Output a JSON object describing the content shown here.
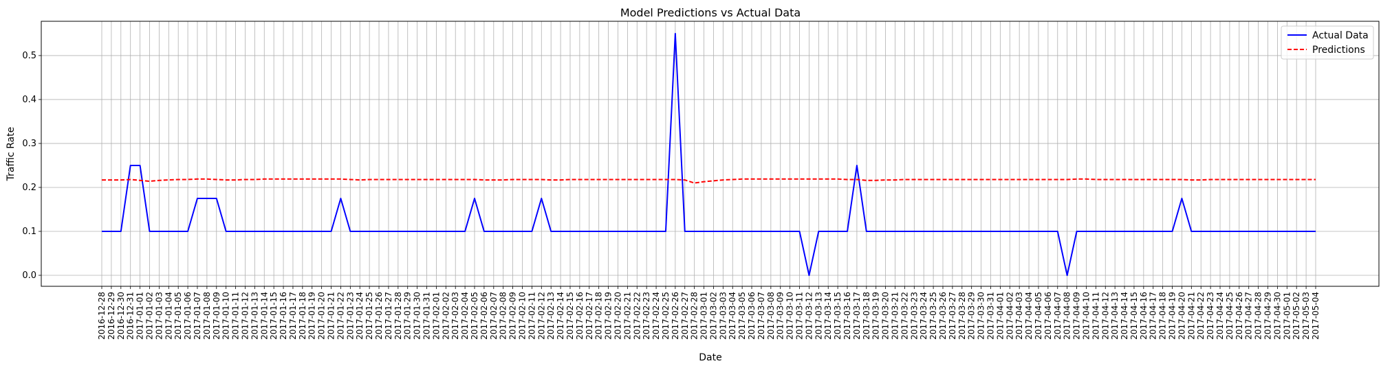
{
  "chart_data": {
    "type": "line",
    "title": "Model Predictions vs Actual Data",
    "xlabel": "Date",
    "ylabel": "Traffic Rate",
    "ylim": [
      -0.025,
      0.578
    ],
    "yticks": [
      "0.0",
      "0.1",
      "0.2",
      "0.3",
      "0.4",
      "0.5"
    ],
    "grid": true,
    "legend_position": "top-right",
    "x": [
      "2016-12-28",
      "2016-12-29",
      "2016-12-30",
      "2016-12-31",
      "2017-01-01",
      "2017-01-02",
      "2017-01-03",
      "2017-01-04",
      "2017-01-05",
      "2017-01-06",
      "2017-01-07",
      "2017-01-08",
      "2017-01-09",
      "2017-01-10",
      "2017-01-11",
      "2017-01-12",
      "2017-01-13",
      "2017-01-14",
      "2017-01-15",
      "2017-01-16",
      "2017-01-17",
      "2017-01-18",
      "2017-01-19",
      "2017-01-20",
      "2017-01-21",
      "2017-01-22",
      "2017-01-23",
      "2017-01-24",
      "2017-01-25",
      "2017-01-26",
      "2017-01-27",
      "2017-01-28",
      "2017-01-29",
      "2017-01-30",
      "2017-01-31",
      "2017-02-01",
      "2017-02-02",
      "2017-02-03",
      "2017-02-04",
      "2017-02-05",
      "2017-02-06",
      "2017-02-07",
      "2017-02-08",
      "2017-02-09",
      "2017-02-10",
      "2017-02-11",
      "2017-02-12",
      "2017-02-13",
      "2017-02-14",
      "2017-02-15",
      "2017-02-16",
      "2017-02-17",
      "2017-02-18",
      "2017-02-19",
      "2017-02-20",
      "2017-02-21",
      "2017-02-22",
      "2017-02-23",
      "2017-02-24",
      "2017-02-25",
      "2017-02-26",
      "2017-02-27",
      "2017-02-28",
      "2017-03-01",
      "2017-03-02",
      "2017-03-03",
      "2017-03-04",
      "2017-03-05",
      "2017-03-06",
      "2017-03-07",
      "2017-03-08",
      "2017-03-09",
      "2017-03-10",
      "2017-03-11",
      "2017-03-12",
      "2017-03-13",
      "2017-03-14",
      "2017-03-15",
      "2017-03-16",
      "2017-03-17",
      "2017-03-18",
      "2017-03-19",
      "2017-03-20",
      "2017-03-21",
      "2017-03-22",
      "2017-03-23",
      "2017-03-24",
      "2017-03-25",
      "2017-03-26",
      "2017-03-27",
      "2017-03-28",
      "2017-03-29",
      "2017-03-30",
      "2017-03-31",
      "2017-04-01",
      "2017-04-02",
      "2017-04-03",
      "2017-04-04",
      "2017-04-05",
      "2017-04-06",
      "2017-04-07",
      "2017-04-08",
      "2017-04-09",
      "2017-04-10",
      "2017-04-11",
      "2017-04-12",
      "2017-04-13",
      "2017-04-14",
      "2017-04-15",
      "2017-04-16",
      "2017-04-17",
      "2017-04-18",
      "2017-04-19",
      "2017-04-20",
      "2017-04-21",
      "2017-04-22",
      "2017-04-23",
      "2017-04-24",
      "2017-04-25",
      "2017-04-26",
      "2017-04-27",
      "2017-04-28",
      "2017-04-29",
      "2017-04-30",
      "2017-05-01",
      "2017-05-02",
      "2017-05-03",
      "2017-05-04"
    ],
    "series": [
      {
        "name": "Actual Data",
        "color": "#0000ff",
        "style": "solid",
        "values": [
          0.1,
          0.1,
          0.1,
          0.25,
          0.25,
          0.1,
          0.1,
          0.1,
          0.1,
          0.1,
          0.175,
          0.175,
          0.175,
          0.1,
          0.1,
          0.1,
          0.1,
          0.1,
          0.1,
          0.1,
          0.1,
          0.1,
          0.1,
          0.1,
          0.1,
          0.175,
          0.1,
          0.1,
          0.1,
          0.1,
          0.1,
          0.1,
          0.1,
          0.1,
          0.1,
          0.1,
          0.1,
          0.1,
          0.1,
          0.175,
          0.1,
          0.1,
          0.1,
          0.1,
          0.1,
          0.1,
          0.175,
          0.1,
          0.1,
          0.1,
          0.1,
          0.1,
          0.1,
          0.1,
          0.1,
          0.1,
          0.1,
          0.1,
          0.1,
          0.1,
          0.55,
          0.1,
          0.1,
          0.1,
          0.1,
          0.1,
          0.1,
          0.1,
          0.1,
          0.1,
          0.1,
          0.1,
          0.1,
          0.1,
          0.0,
          0.1,
          0.1,
          0.1,
          0.1,
          0.25,
          0.1,
          0.1,
          0.1,
          0.1,
          0.1,
          0.1,
          0.1,
          0.1,
          0.1,
          0.1,
          0.1,
          0.1,
          0.1,
          0.1,
          0.1,
          0.1,
          0.1,
          0.1,
          0.1,
          0.1,
          0.1,
          0.0,
          0.1,
          0.1,
          0.1,
          0.1,
          0.1,
          0.1,
          0.1,
          0.1,
          0.1,
          0.1,
          0.1,
          0.175,
          0.1,
          0.1,
          0.1,
          0.1,
          0.1,
          0.1,
          0.1,
          0.1,
          0.1,
          0.1,
          0.1,
          0.1,
          0.1,
          0.1
        ]
      },
      {
        "name": "Predictions",
        "color": "#ff0000",
        "style": "dashed",
        "values": [
          0.217,
          0.217,
          0.217,
          0.218,
          0.216,
          0.214,
          0.216,
          0.217,
          0.218,
          0.218,
          0.219,
          0.219,
          0.218,
          0.217,
          0.217,
          0.218,
          0.218,
          0.219,
          0.219,
          0.219,
          0.219,
          0.219,
          0.219,
          0.219,
          0.219,
          0.219,
          0.218,
          0.217,
          0.218,
          0.218,
          0.218,
          0.218,
          0.218,
          0.218,
          0.218,
          0.218,
          0.218,
          0.218,
          0.218,
          0.218,
          0.217,
          0.217,
          0.217,
          0.218,
          0.218,
          0.218,
          0.218,
          0.217,
          0.217,
          0.218,
          0.218,
          0.218,
          0.218,
          0.218,
          0.218,
          0.218,
          0.218,
          0.218,
          0.218,
          0.218,
          0.218,
          0.217,
          0.21,
          0.213,
          0.215,
          0.217,
          0.218,
          0.219,
          0.219,
          0.219,
          0.219,
          0.219,
          0.219,
          0.219,
          0.219,
          0.219,
          0.219,
          0.219,
          0.218,
          0.218,
          0.216,
          0.216,
          0.217,
          0.217,
          0.218,
          0.218,
          0.218,
          0.218,
          0.218,
          0.218,
          0.218,
          0.218,
          0.218,
          0.218,
          0.218,
          0.218,
          0.218,
          0.218,
          0.218,
          0.218,
          0.218,
          0.218,
          0.219,
          0.219,
          0.218,
          0.218,
          0.218,
          0.218,
          0.218,
          0.218,
          0.218,
          0.218,
          0.218,
          0.218,
          0.217,
          0.217,
          0.218,
          0.218,
          0.218,
          0.218,
          0.218,
          0.218,
          0.218,
          0.218,
          0.218,
          0.218,
          0.218,
          0.218
        ]
      }
    ]
  }
}
